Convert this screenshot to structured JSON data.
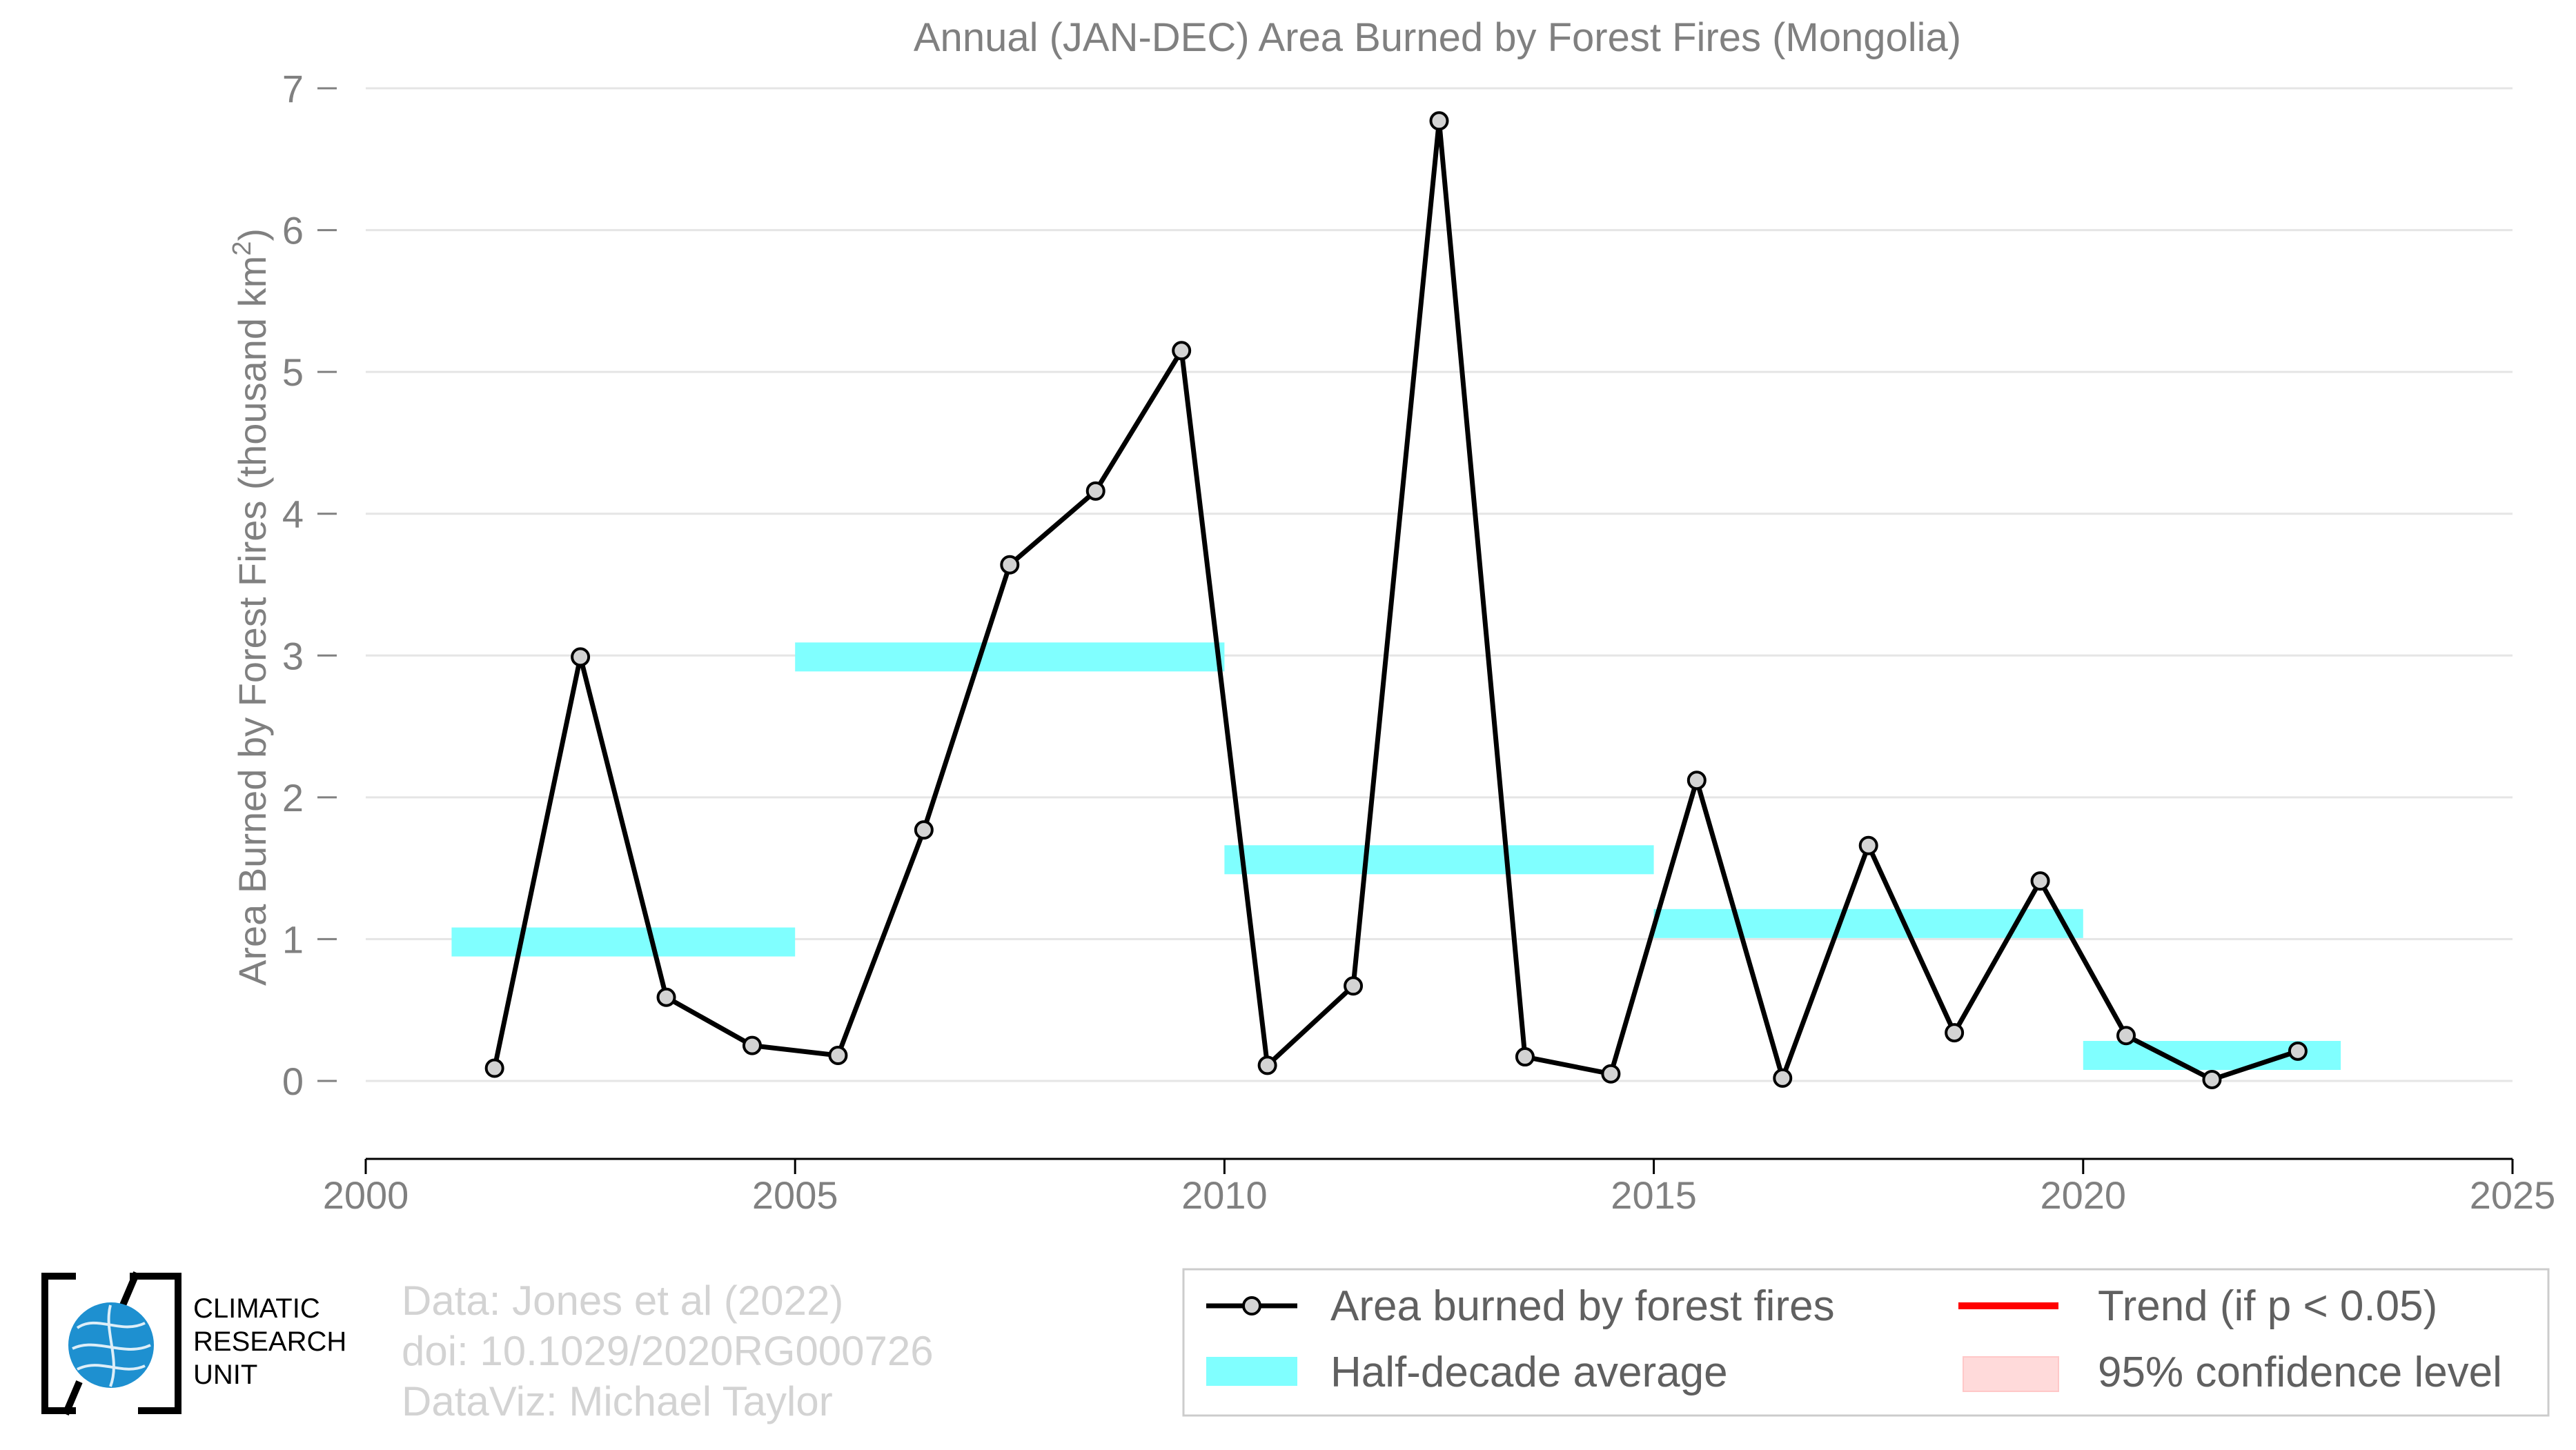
{
  "chart_data": {
    "type": "line",
    "title": "Annual (JAN-DEC) Area Burned by Forest Fires (Mongolia)",
    "xlabel": "",
    "ylabel": "Area Burned by Forest Fires (thousand km",
    "ylabel_sup": "2",
    "ylabel_close": ")",
    "xlim": [
      2000,
      2025
    ],
    "ylim": [
      -0.55,
      7
    ],
    "xticks": [
      2000,
      2005,
      2010,
      2015,
      2020,
      2025
    ],
    "yticks": [
      0,
      1,
      2,
      3,
      4,
      5,
      6,
      7
    ],
    "grid": true,
    "series": [
      {
        "name": "Area burned by forest fires",
        "color": "#000000",
        "marker_fill": "#d3d3d3",
        "x": [
          2001.5,
          2002.5,
          2003.5,
          2004.5,
          2005.5,
          2006.5,
          2007.5,
          2008.5,
          2009.5,
          2010.5,
          2011.5,
          2012.5,
          2013.5,
          2014.5,
          2015.5,
          2016.5,
          2017.5,
          2018.5,
          2019.5,
          2020.5,
          2021.5,
          2022.5
        ],
        "y": [
          0.09,
          2.99,
          0.59,
          0.25,
          0.18,
          1.77,
          3.64,
          4.16,
          5.15,
          0.11,
          0.67,
          6.77,
          0.17,
          0.05,
          2.12,
          0.02,
          1.66,
          0.34,
          1.41,
          0.32,
          0.01,
          0.21
        ]
      }
    ],
    "half_decade_average": {
      "name": "Half-decade average",
      "color": "#80ffff",
      "segments": [
        {
          "x0": 2001,
          "x1": 2005,
          "y": 0.98
        },
        {
          "x0": 2005,
          "x1": 2010,
          "y": 2.99
        },
        {
          "x0": 2010,
          "x1": 2015,
          "y": 1.56
        },
        {
          "x0": 2015,
          "x1": 2020,
          "y": 1.11
        },
        {
          "x0": 2020,
          "x1": 2023,
          "y": 0.18
        }
      ]
    },
    "legend": {
      "placement": "bottom-right",
      "entries": [
        {
          "label": "Area burned by forest fires",
          "kind": "line-marker",
          "color": "#000000"
        },
        {
          "label": "Trend (if p < 0.05)",
          "kind": "line",
          "color": "#ff0000"
        },
        {
          "label": "Half-decade average",
          "kind": "band",
          "color": "#80ffff"
        },
        {
          "label": "95% confidence level",
          "kind": "band",
          "color": "#ffdada"
        }
      ]
    }
  },
  "credits": {
    "line1": "Data: Jones et al (2022)",
    "line2": "doi: 10.1029/2020RG000726",
    "line3": "DataViz: Michael Taylor"
  },
  "logo": {
    "line1": "CLIMATIC",
    "line2": "RESEARCH",
    "line3": "UNIT",
    "globe_color": "#1e90d0"
  }
}
